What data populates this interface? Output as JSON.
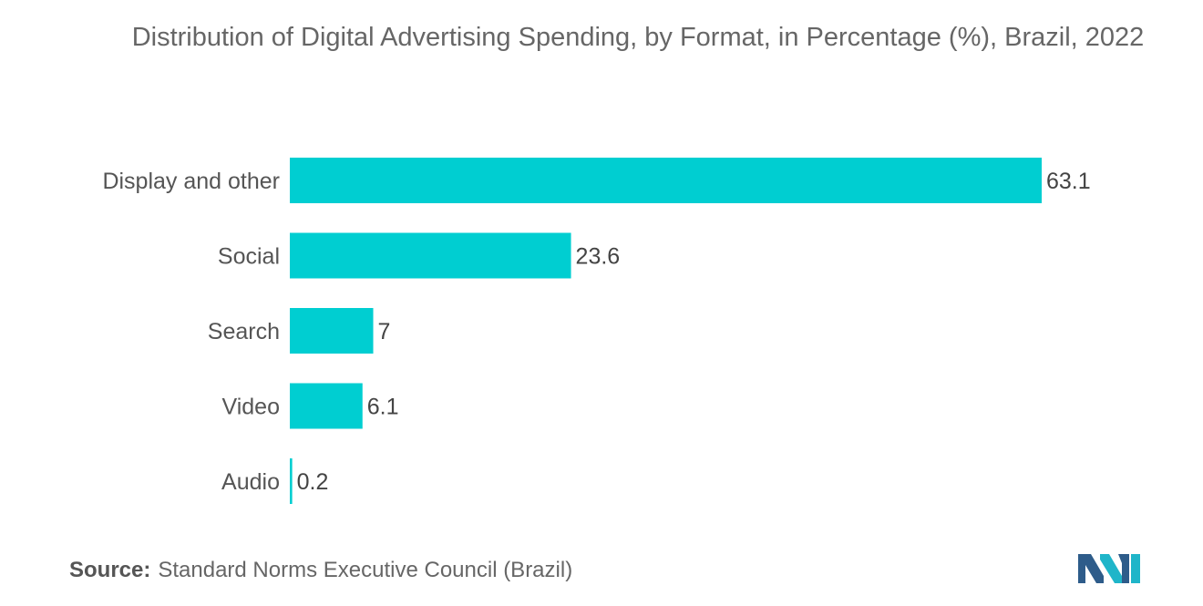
{
  "chart_data": {
    "type": "bar",
    "orientation": "horizontal",
    "title": "Distribution of Digital Advertising Spending, by Format, in Percentage (%), Brazil, 2022",
    "categories": [
      "Display and other",
      "Social",
      "Search",
      "Video",
      "Audio"
    ],
    "values": [
      63.1,
      23.6,
      7,
      6.1,
      0.2
    ],
    "value_labels": [
      "63.1",
      "23.6",
      "7",
      "6.1",
      "0.2"
    ],
    "xlim": [
      0,
      63.1
    ],
    "grid": false,
    "legend": "none",
    "bar_color": "#00CED1"
  },
  "source": {
    "label": "Source:",
    "text": "Standard Norms Executive Council (Brazil)"
  },
  "logo": {
    "icon": "mordor-intelligence-logo-icon",
    "colors": [
      "#2E5C8A",
      "#1FB5C9"
    ]
  }
}
